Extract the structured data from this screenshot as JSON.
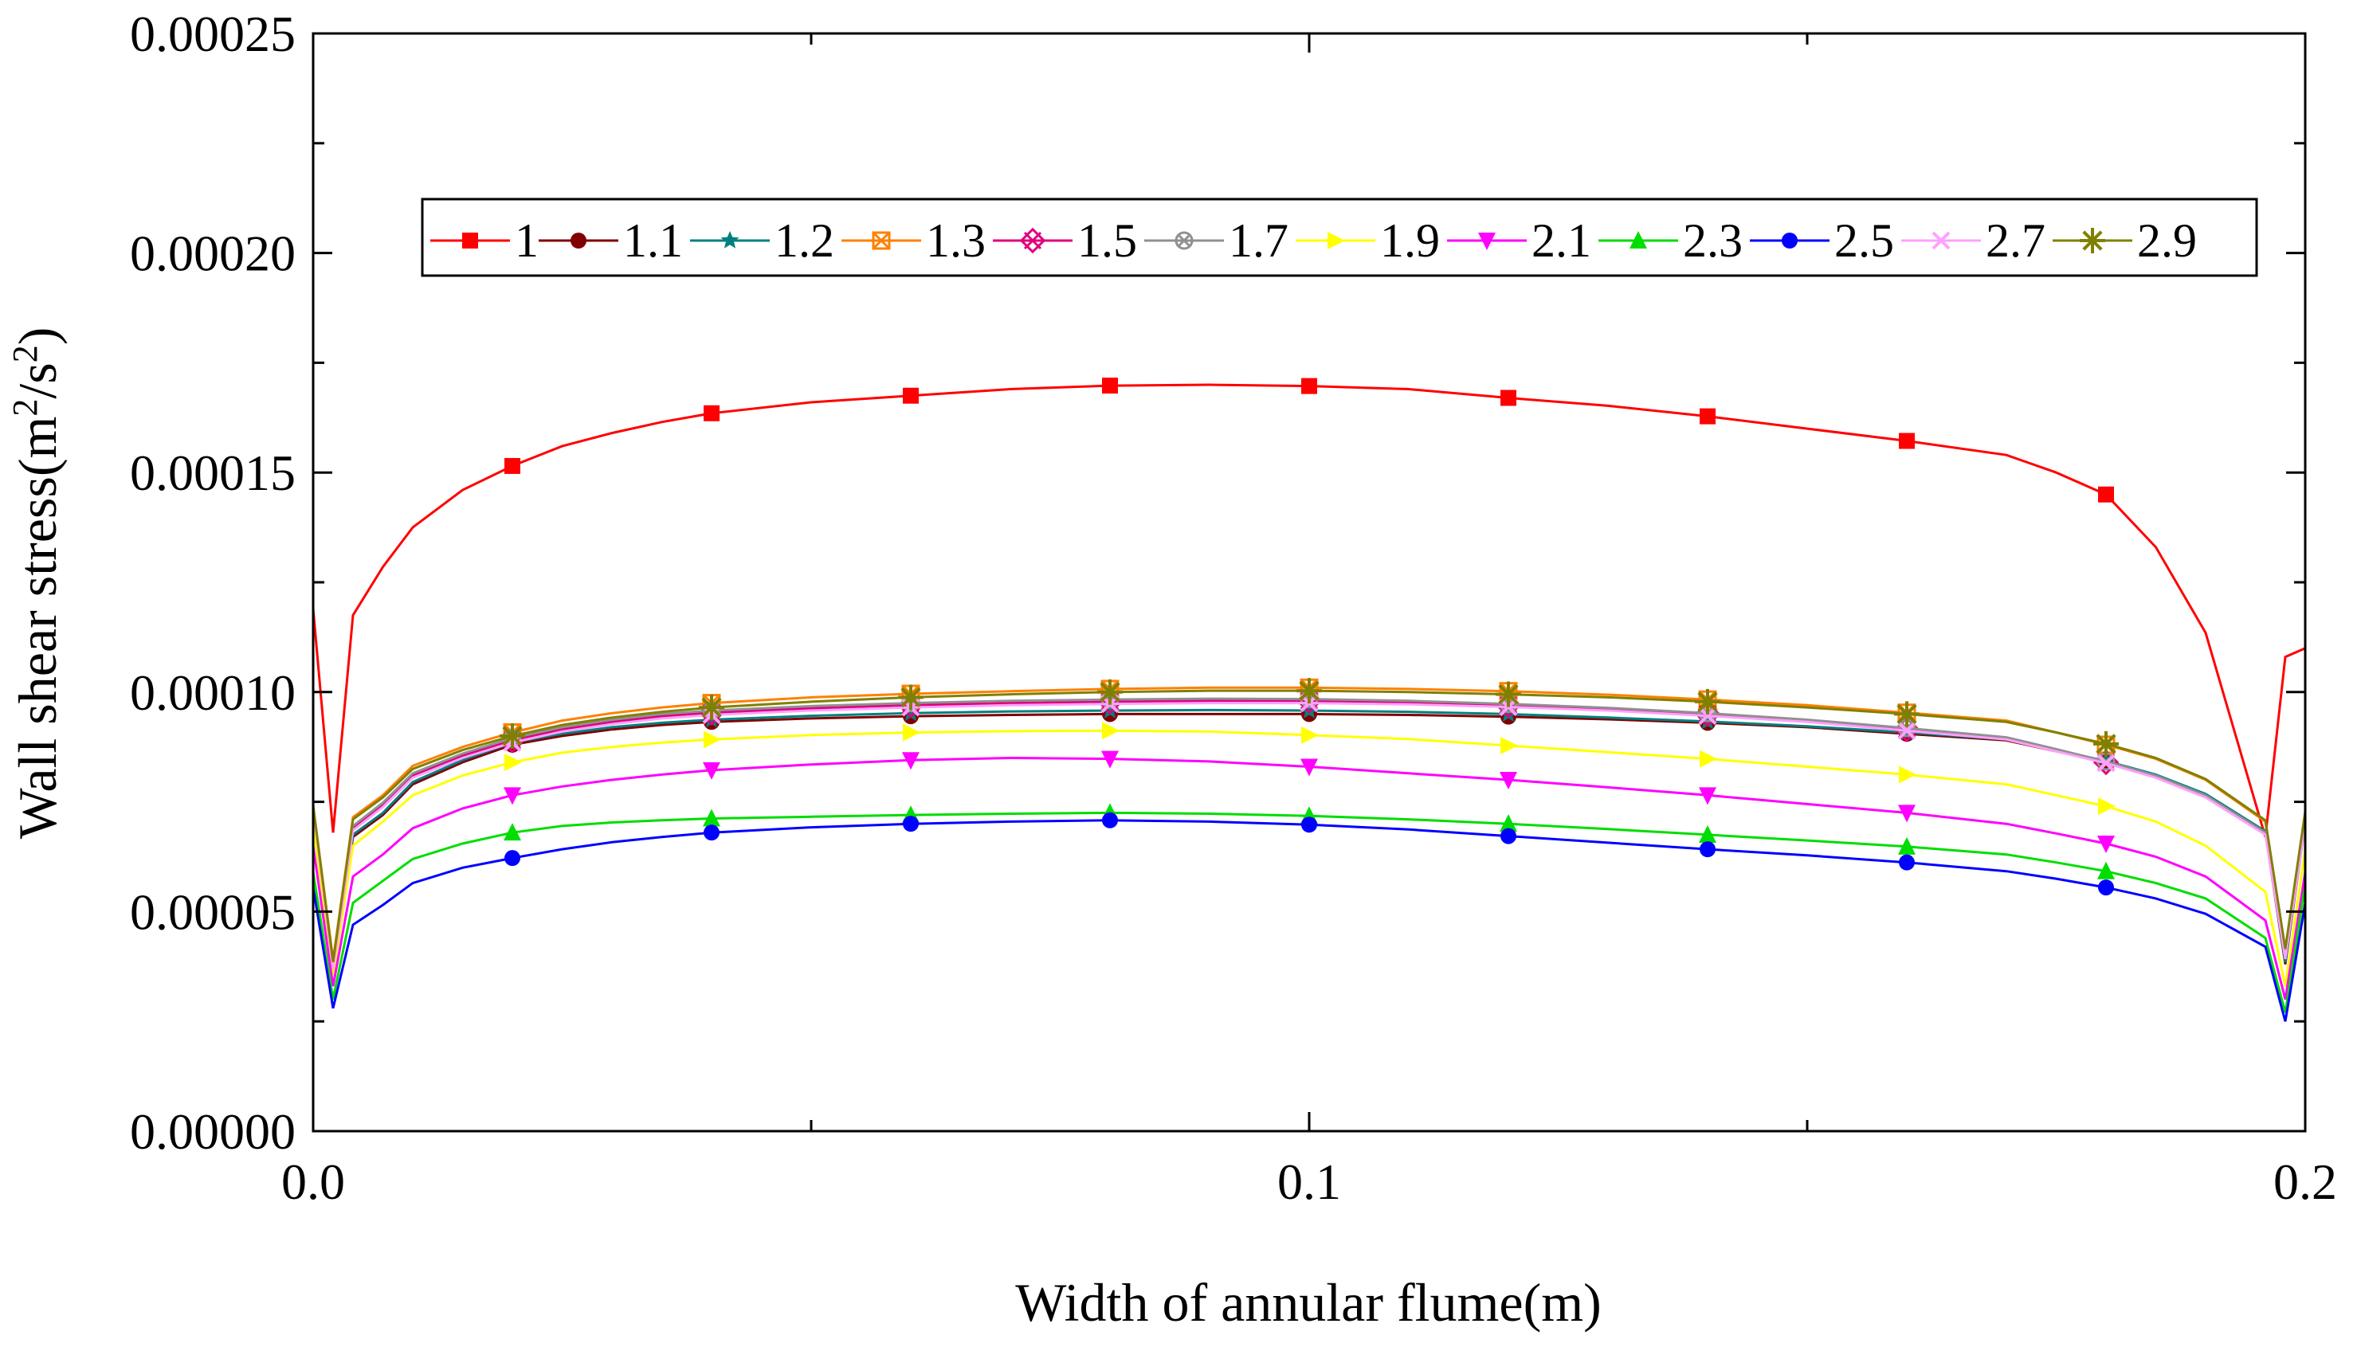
{
  "chart_data": {
    "type": "line",
    "title": "",
    "xlabel": "Width of annular flume(m)",
    "ylabel": "Wall shear stress(m²/s²)",
    "ylabel_parts": {
      "main": "Wall shear stress(m",
      "sup1": "2",
      "mid": "/s",
      "sup2": "2",
      "end": ")"
    },
    "xlim": [
      0.0,
      0.2
    ],
    "ylim": [
      0.0,
      0.00025
    ],
    "x_ticks": [
      0.0,
      0.1,
      0.2
    ],
    "x_tick_labels": [
      "0.0",
      "0.1",
      "0.2"
    ],
    "y_ticks": [
      0.0,
      5e-05,
      0.0001,
      0.00015,
      0.0002,
      0.00025
    ],
    "y_tick_labels": [
      "0.00000",
      "0.00005",
      "0.00010",
      "0.00015",
      "0.00020",
      "0.00025"
    ],
    "legend_position": "top, single row",
    "x": [
      0.0,
      0.002,
      0.004,
      0.007,
      0.01,
      0.015,
      0.02,
      0.025,
      0.03,
      0.035,
      0.04,
      0.05,
      0.06,
      0.07,
      0.08,
      0.09,
      0.1,
      0.11,
      0.12,
      0.13,
      0.14,
      0.15,
      0.16,
      0.17,
      0.175,
      0.18,
      0.185,
      0.19,
      0.196,
      0.198,
      0.2
    ],
    "marker_x": [
      0.02,
      0.04,
      0.06,
      0.08,
      0.1,
      0.12,
      0.14,
      0.16,
      0.18
    ],
    "series": [
      {
        "name": "1",
        "color": "#ff0000",
        "marker": "square",
        "values": [
          0.000119,
          6.8e-05,
          0.0001175,
          0.0001285,
          0.0001375,
          0.000146,
          0.0001515,
          0.000156,
          0.000159,
          0.0001615,
          0.0001635,
          0.000166,
          0.0001675,
          0.000169,
          0.0001698,
          0.00017,
          0.0001697,
          0.000169,
          0.000167,
          0.0001652,
          0.0001628,
          0.00016,
          0.0001572,
          0.000154,
          0.00015,
          0.000145,
          0.000133,
          0.0001135,
          6.7e-05,
          0.000108,
          0.00011
        ]
      },
      {
        "name": "1.1",
        "color": "#800000",
        "marker": "circle",
        "values": [
          7.35e-05,
          3.55e-05,
          6.7e-05,
          7.2e-05,
          7.9e-05,
          8.4e-05,
          8.8e-05,
          9e-05,
          9.15e-05,
          9.25e-05,
          9.32e-05,
          9.4e-05,
          9.45e-05,
          9.48e-05,
          9.5e-05,
          9.5e-05,
          9.5e-05,
          9.48e-05,
          9.44e-05,
          9.38e-05,
          9.3e-05,
          9.2e-05,
          9.05e-05,
          8.9e-05,
          8.65e-05,
          8.4e-05,
          8.1e-05,
          7.65e-05,
          6.8e-05,
          3.8e-05,
          7.05e-05
        ]
      },
      {
        "name": "1.2",
        "color": "#008080",
        "marker": "star",
        "values": [
          7.38e-05,
          3.65e-05,
          6.75e-05,
          7.25e-05,
          7.95e-05,
          8.45e-05,
          8.85e-05,
          9.05e-05,
          9.2e-05,
          9.3e-05,
          9.37e-05,
          9.46e-05,
          9.52e-05,
          9.56e-05,
          9.58e-05,
          9.59e-05,
          9.58e-05,
          9.55e-05,
          9.5e-05,
          9.42e-05,
          9.33e-05,
          9.22e-05,
          9.08e-05,
          8.92e-05,
          8.68e-05,
          8.43e-05,
          8.12e-05,
          7.68e-05,
          6.83e-05,
          3.85e-05,
          7.08e-05
        ]
      },
      {
        "name": "1.3",
        "color": "#ff8000",
        "marker": "open-star-square",
        "values": [
          7.4e-05,
          3.9e-05,
          7.15e-05,
          7.65e-05,
          8.32e-05,
          8.75e-05,
          9.08e-05,
          9.35e-05,
          9.52e-05,
          9.65e-05,
          9.75e-05,
          9.88e-05,
          9.96e-05,
          0.0001002,
          0.0001007,
          0.000101,
          0.000101,
          0.0001007,
          0.0001002,
          9.94e-05,
          9.83e-05,
          9.7e-05,
          9.53e-05,
          9.35e-05,
          9.08e-05,
          8.8e-05,
          8.48e-05,
          8e-05,
          7.05e-05,
          4.1e-05,
          7.25e-05
        ]
      },
      {
        "name": "1.5",
        "color": "#e0007c",
        "marker": "open-cross-square",
        "values": [
          7.35e-05,
          3.75e-05,
          6.9e-05,
          7.42e-05,
          8.1e-05,
          8.55e-05,
          8.9e-05,
          9.15e-05,
          9.32e-05,
          9.45e-05,
          9.53e-05,
          9.63e-05,
          9.7e-05,
          9.75e-05,
          9.78e-05,
          9.8e-05,
          9.8e-05,
          9.77e-05,
          9.7e-05,
          9.62e-05,
          9.5e-05,
          9.35e-05,
          9.15e-05,
          8.95e-05,
          8.68e-05,
          8.4e-05,
          8.08e-05,
          7.62e-05,
          6.78e-05,
          3.95e-05,
          7.05e-05
        ]
      },
      {
        "name": "1.7",
        "color": "#909090",
        "marker": "open-x-circle",
        "values": [
          7.38e-05,
          3.8e-05,
          6.95e-05,
          7.48e-05,
          8.15e-05,
          8.6e-05,
          8.95e-05,
          9.2e-05,
          9.37e-05,
          9.5e-05,
          9.58e-05,
          9.68e-05,
          9.75e-05,
          9.8e-05,
          9.83e-05,
          9.85e-05,
          9.84e-05,
          9.8e-05,
          9.73e-05,
          9.64e-05,
          9.52e-05,
          9.37e-05,
          9.18e-05,
          8.97e-05,
          8.7e-05,
          8.42e-05,
          8.1e-05,
          7.65e-05,
          6.8e-05,
          4e-05,
          7.08e-05
        ]
      },
      {
        "name": "1.9",
        "color": "#ffff00",
        "marker": "triangle-right",
        "values": [
          7e-05,
          3.55e-05,
          6.5e-05,
          7.05e-05,
          7.65e-05,
          8.1e-05,
          8.4e-05,
          8.62e-05,
          8.75e-05,
          8.85e-05,
          8.92e-05,
          9.02e-05,
          9.08e-05,
          9.11e-05,
          9.12e-05,
          9.1e-05,
          9.02e-05,
          8.93e-05,
          8.78e-05,
          8.63e-05,
          8.48e-05,
          8.3e-05,
          8.12e-05,
          7.9e-05,
          7.65e-05,
          7.4e-05,
          7.05e-05,
          6.5e-05,
          5.45e-05,
          3.3e-05,
          6.4e-05
        ]
      },
      {
        "name": "2.1",
        "color": "#ff00ff",
        "marker": "triangle-down",
        "values": [
          6.5e-05,
          3.3e-05,
          5.8e-05,
          6.3e-05,
          6.9e-05,
          7.35e-05,
          7.65e-05,
          7.85e-05,
          8e-05,
          8.12e-05,
          8.22e-05,
          8.35e-05,
          8.45e-05,
          8.5e-05,
          8.48e-05,
          8.42e-05,
          8.3e-05,
          8.15e-05,
          8e-05,
          7.83e-05,
          7.65e-05,
          7.45e-05,
          7.25e-05,
          7e-05,
          6.78e-05,
          6.55e-05,
          6.25e-05,
          5.8e-05,
          4.8e-05,
          3e-05,
          5.9e-05
        ]
      },
      {
        "name": "2.3",
        "color": "#00dd00",
        "marker": "triangle-up",
        "values": [
          5.9e-05,
          3e-05,
          5.2e-05,
          5.7e-05,
          6.2e-05,
          6.55e-05,
          6.8e-05,
          6.95e-05,
          7.03e-05,
          7.08e-05,
          7.12e-05,
          7.16e-05,
          7.2e-05,
          7.23e-05,
          7.25e-05,
          7.23e-05,
          7.18e-05,
          7.1e-05,
          7e-05,
          6.88e-05,
          6.75e-05,
          6.62e-05,
          6.48e-05,
          6.3e-05,
          6.12e-05,
          5.92e-05,
          5.65e-05,
          5.3e-05,
          4.4e-05,
          2.7e-05,
          5.6e-05
        ]
      },
      {
        "name": "2.5",
        "color": "#0000ff",
        "marker": "circle",
        "values": [
          5.55e-05,
          2.8e-05,
          4.7e-05,
          5.15e-05,
          5.65e-05,
          6e-05,
          6.22e-05,
          6.42e-05,
          6.58e-05,
          6.7e-05,
          6.8e-05,
          6.92e-05,
          7e-05,
          7.05e-05,
          7.08e-05,
          7.05e-05,
          6.98e-05,
          6.87e-05,
          6.72e-05,
          6.57e-05,
          6.42e-05,
          6.28e-05,
          6.12e-05,
          5.92e-05,
          5.75e-05,
          5.55e-05,
          5.3e-05,
          4.95e-05,
          4.2e-05,
          2.5e-05,
          5.2e-05
        ]
      },
      {
        "name": "2.7",
        "color": "#ffa0ff",
        "marker": "open-x",
        "values": [
          7.35e-05,
          3.7e-05,
          6.85e-05,
          7.38e-05,
          8.05e-05,
          8.5e-05,
          8.85e-05,
          9.1e-05,
          9.27e-05,
          9.4e-05,
          9.48e-05,
          9.58e-05,
          9.65e-05,
          9.7e-05,
          9.73e-05,
          9.75e-05,
          9.75e-05,
          9.72e-05,
          9.66e-05,
          9.58e-05,
          9.46e-05,
          9.32e-05,
          9.12e-05,
          8.92e-05,
          8.65e-05,
          8.38e-05,
          8.05e-05,
          7.6e-05,
          6.75e-05,
          3.92e-05,
          7.03e-05
        ]
      },
      {
        "name": "2.9",
        "color": "#808000",
        "marker": "asterisk",
        "values": [
          7.42e-05,
          3.85e-05,
          7.1e-05,
          7.6e-05,
          8.25e-05,
          8.68e-05,
          9e-05,
          9.25e-05,
          9.42e-05,
          9.55e-05,
          9.65e-05,
          9.78e-05,
          9.88e-05,
          9.95e-05,
          0.0001,
          0.0001003,
          0.0001003,
          0.0001,
          9.95e-05,
          9.88e-05,
          9.78e-05,
          9.65e-05,
          9.5e-05,
          9.32e-05,
          9.08e-05,
          8.82e-05,
          8.5e-05,
          8.02e-05,
          7.08e-05,
          4.15e-05,
          7.28e-05
        ]
      }
    ]
  }
}
